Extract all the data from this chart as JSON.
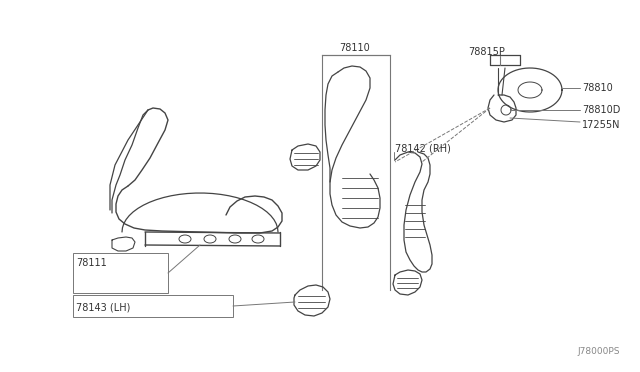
{
  "bg_color": "#ffffff",
  "diagram_code": "J78000PS",
  "line_color": "#444444",
  "leader_color": "#777777",
  "text_color": "#333333",
  "font_size": 7.0,
  "label_78110": "78110",
  "label_78815P": "78815P",
  "label_78810": "78810",
  "label_78810D": "78810D",
  "label_17255N": "17255N",
  "label_78142": "78142 (RH)",
  "label_78111": "78111",
  "label_78143": "78143 (LH)"
}
